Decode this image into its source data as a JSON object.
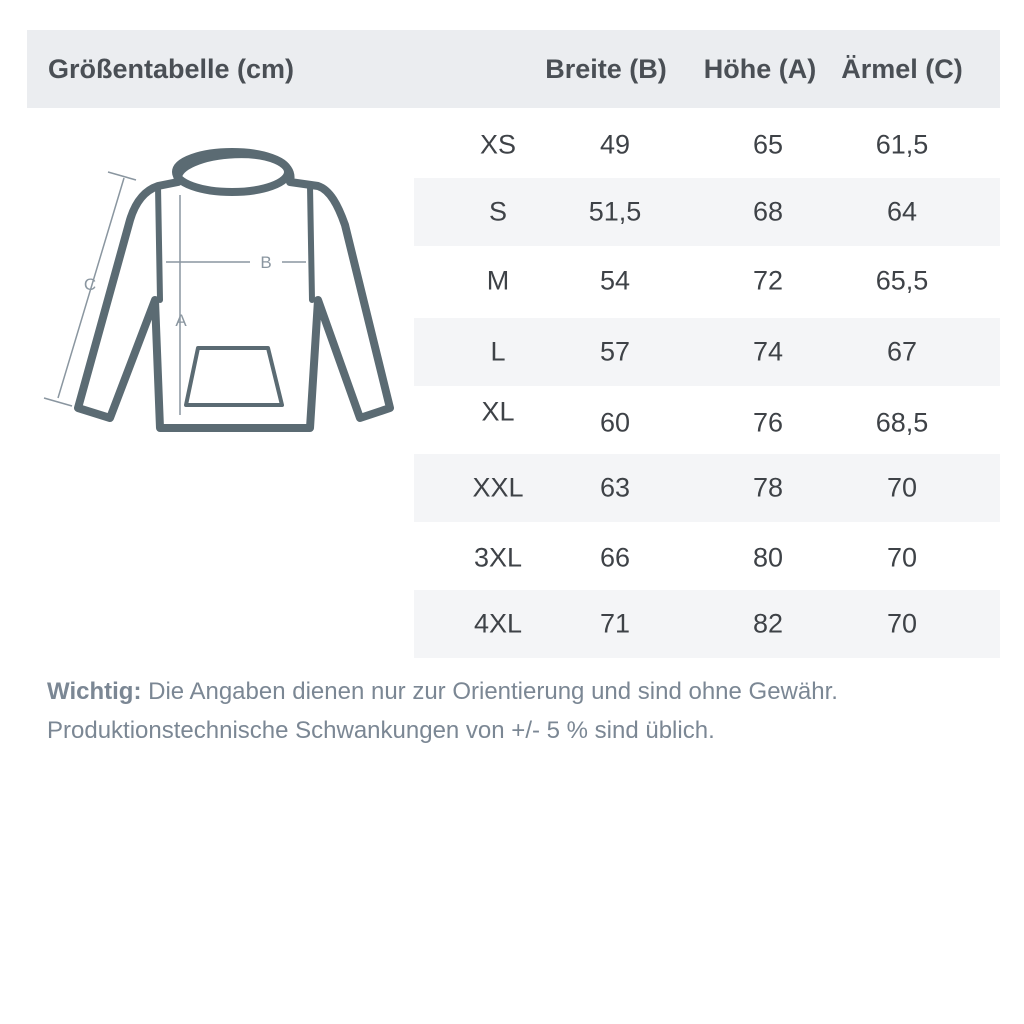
{
  "header": {
    "title": "Größentabelle (cm)",
    "columns": [
      "Breite (B)",
      "Höhe (A)",
      "Ärmel (C)"
    ]
  },
  "table": {
    "rows": [
      [
        "XS",
        "49",
        "65",
        "61,5"
      ],
      [
        "S",
        "51,5",
        "68",
        "64"
      ],
      [
        "M",
        "54",
        "72",
        "65,5"
      ],
      [
        "L",
        "57",
        "74",
        "67"
      ],
      [
        "XL",
        "60",
        "76",
        "68,5"
      ],
      [
        "XXL",
        "63",
        "78",
        "70"
      ],
      [
        "3XL",
        "66",
        "80",
        "70"
      ],
      [
        "4XL",
        "71",
        "82",
        "70"
      ]
    ]
  },
  "diagram": {
    "labels": [
      "A",
      "B",
      "C"
    ]
  },
  "note": {
    "label": "Wichtig:",
    "line1": "Die Angaben dienen nur zur Orientierung und sind ohne Gewähr.",
    "line2": "Produktionstechnische Schwankungen von +/- 5 % sind üblich."
  }
}
